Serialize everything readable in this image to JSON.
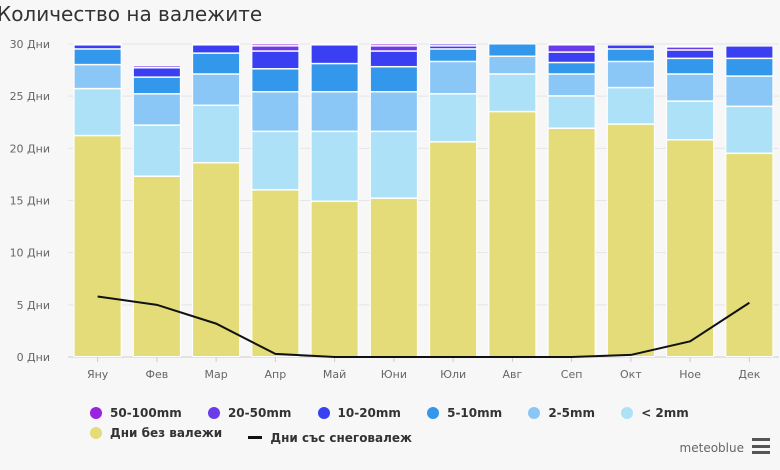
{
  "chart_data": {
    "type": "bar",
    "stacked": true,
    "title": "Количество на валежите",
    "categories": [
      "Яну",
      "Фев",
      "Мар",
      "Апр",
      "Май",
      "Юни",
      "Юли",
      "Авг",
      "Сеп",
      "Окт",
      "Ное",
      "Дек"
    ],
    "ylim": [
      0,
      30
    ],
    "yticks": [
      "0 Дни",
      "5 Дни",
      "10 Дни",
      "15 Дни",
      "20 Дни",
      "25 Дни",
      "30 Дни"
    ],
    "grid": true,
    "legend_position": "bottom",
    "series": [
      {
        "name": "Дни без валежи",
        "color": "#e3dc78",
        "values": [
          21.2,
          17.3,
          18.6,
          16.0,
          14.9,
          15.2,
          20.6,
          23.5,
          21.9,
          22.3,
          20.8,
          19.5
        ]
      },
      {
        "name": "< 2mm",
        "color": "#ade1f7",
        "values": [
          4.5,
          4.9,
          5.5,
          5.6,
          6.7,
          6.4,
          4.6,
          3.6,
          3.1,
          3.5,
          3.7,
          4.5
        ]
      },
      {
        "name": "2-5mm",
        "color": "#8ac7f7",
        "values": [
          2.3,
          3.0,
          3.0,
          3.8,
          3.8,
          3.8,
          3.1,
          1.7,
          2.1,
          2.5,
          2.6,
          2.9
        ]
      },
      {
        "name": "5-10mm",
        "color": "#3398ec",
        "values": [
          1.5,
          1.6,
          2.0,
          2.2,
          2.7,
          2.4,
          1.2,
          1.2,
          1.1,
          1.2,
          1.5,
          1.7
        ]
      },
      {
        "name": "10-20mm",
        "color": "#3a3ff2",
        "values": [
          0.4,
          0.9,
          0.8,
          1.7,
          1.8,
          1.5,
          0.3,
          0,
          1.0,
          0.4,
          0.8,
          1.2
        ]
      },
      {
        "name": "20-50mm",
        "color": "#6b3bea",
        "values": [
          0.1,
          0.2,
          0.1,
          0.5,
          0.1,
          0.5,
          0.2,
          0,
          0.7,
          0,
          0.3,
          0
        ]
      },
      {
        "name": "50-100mm",
        "color": "#9b22e0",
        "values": [
          0,
          0,
          0,
          0.2,
          0,
          0.2,
          0,
          0,
          0.1,
          0,
          0.1,
          0
        ]
      }
    ],
    "line_series": {
      "name": "Дни със снеговалеж",
      "color": "#111111",
      "values": [
        5.8,
        5.0,
        3.2,
        0.3,
        0,
        0,
        0,
        0,
        0,
        0.2,
        1.5,
        5.2
      ]
    }
  },
  "legend": {
    "order": [
      "50-100mm",
      "20-50mm",
      "10-20mm",
      "5-10mm",
      "2-5mm",
      "< 2mm",
      "Дни без валежи",
      "Дни със снеговалеж"
    ]
  },
  "brand": "meteoblue",
  "menu_icon": "hamburger-icon"
}
